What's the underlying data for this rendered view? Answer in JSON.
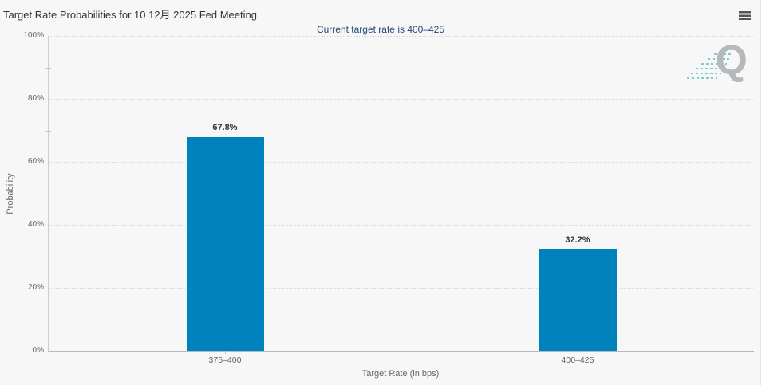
{
  "header": {
    "title": "Target Rate Probabilities for 10 12月 2025 Fed Meeting",
    "subtitle": "Current target rate is 400–425"
  },
  "watermark": {
    "letter": "Q"
  },
  "colors": {
    "bar": "#0082bd",
    "subtitle_text": "#254a7a",
    "background": "#f7f7f8"
  },
  "chart_data": {
    "type": "bar",
    "title": "Target Rate Probabilities for 10 12月 2025 Fed Meeting",
    "subtitle": "Current target rate is 400–425",
    "categories": [
      "375–400",
      "400–425"
    ],
    "values": [
      67.8,
      32.2
    ],
    "value_labels": [
      "67.8%",
      "32.2%"
    ],
    "xlabel": "Target Rate (in bps)",
    "ylabel": "Probability",
    "ylim": [
      0,
      100
    ],
    "ytick_labels": [
      "0%",
      "20%",
      "40%",
      "60%",
      "80%",
      "100%"
    ],
    "yminor_step": 10,
    "grid": "dotted-horizontal",
    "legend": "none",
    "bar_color": "#0082bd"
  }
}
